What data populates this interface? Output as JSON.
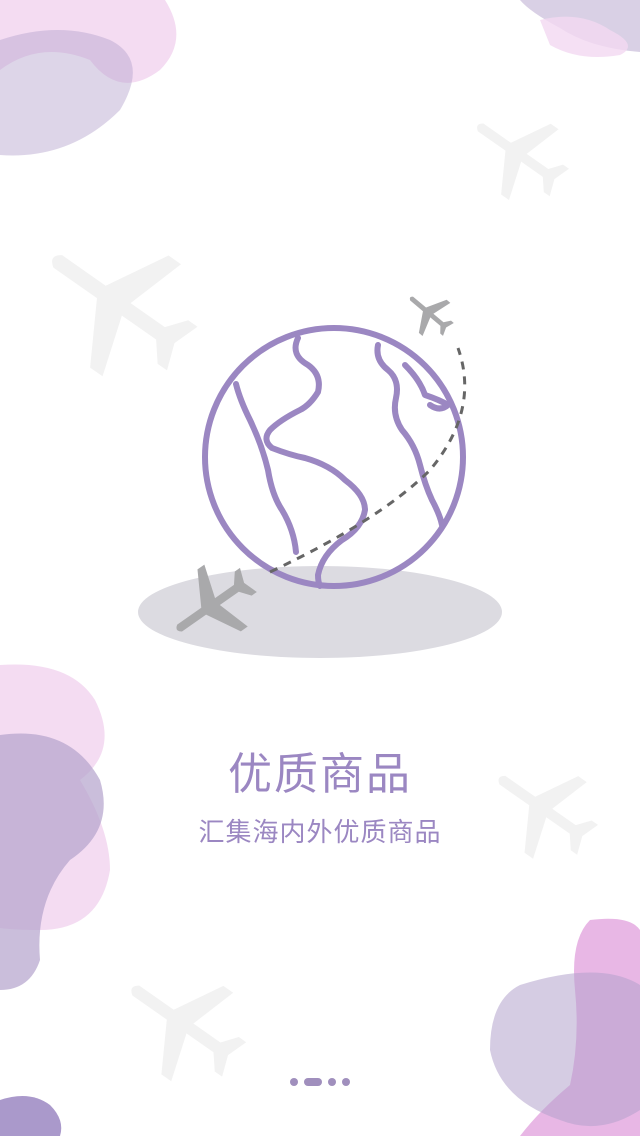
{
  "onboarding": {
    "title": "优质商品",
    "subtitle": "汇集海内外优质商品"
  },
  "pager": {
    "page_count": 4,
    "active_index": 1
  },
  "colors": {
    "accent": "#9b87c2",
    "globe_stroke": "#9b87c2",
    "plane_gray": "#a9a9ab",
    "shadow": "#dcdbe1",
    "faint_plane": "#f2f2f2",
    "blob_lavender": "#b3a2cc",
    "blob_pink": "#e7b3e4",
    "blob_light_pink": "#f3d8f1",
    "dot": "#a08fbd"
  },
  "icons": [
    "globe-icon",
    "airplane-icon",
    "flight-path-line"
  ]
}
